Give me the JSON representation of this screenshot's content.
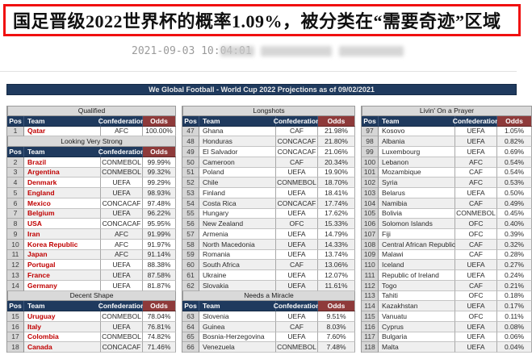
{
  "headline": {
    "text": "国足晋级2022世界杯的概率1.09%，被分类在“需要奇迹”区域"
  },
  "meta": {
    "timestamp": "2021-09-03 10:04:01",
    "redacted_blocks": 3
  },
  "colors": {
    "headline_border": "#f01010",
    "header_navy": "#1f3a5e",
    "odds_header_maroon": "#8e3a3a",
    "section_header_gray": "#d9d9d9",
    "left_group_team_red": "#c00000",
    "row_stripe": "#efefef"
  },
  "table": {
    "title": "We Global Football - World Cup 2022 Projections as of 09/02/2021",
    "headers": {
      "pos": "Pos",
      "team": "Team",
      "confederation": "Confederation",
      "odds": "Odds"
    },
    "groups": [
      {
        "sections": [
          {
            "title": "Qualified",
            "rows": [
              [
                "1",
                "Qatar",
                "AFC",
                "100.00%"
              ]
            ]
          },
          {
            "title": "Looking Very Strong",
            "rows": [
              [
                "2",
                "Brazil",
                "CONMEBOL",
                "99.99%"
              ],
              [
                "3",
                "Argentina",
                "CONMEBOL",
                "99.32%"
              ],
              [
                "4",
                "Denmark",
                "UEFA",
                "99.29%"
              ],
              [
                "5",
                "England",
                "UEFA",
                "98.93%"
              ],
              [
                "6",
                "Mexico",
                "CONCACAF",
                "97.48%"
              ],
              [
                "7",
                "Belgium",
                "UEFA",
                "96.22%"
              ],
              [
                "8",
                "USA",
                "CONCACAF",
                "95.95%"
              ],
              [
                "9",
                "Iran",
                "AFC",
                "91.99%"
              ],
              [
                "10",
                "Korea Republic",
                "AFC",
                "91.97%"
              ],
              [
                "11",
                "Japan",
                "AFC",
                "91.14%"
              ],
              [
                "12",
                "Portugal",
                "UEFA",
                "88.38%"
              ],
              [
                "13",
                "France",
                "UEFA",
                "87.58%"
              ],
              [
                "14",
                "Germany",
                "UEFA",
                "81.87%"
              ]
            ]
          },
          {
            "title": "Decent Shape",
            "rows": [
              [
                "15",
                "Uruguay",
                "CONMEBOL",
                "78.04%"
              ],
              [
                "16",
                "Italy",
                "UEFA",
                "76.81%"
              ],
              [
                "17",
                "Colombia",
                "CONMEBOL",
                "74.82%"
              ],
              [
                "18",
                "Canada",
                "CONCACAF",
                "71.46%"
              ]
            ]
          }
        ]
      },
      {
        "sections": [
          {
            "title": "Longshots",
            "rows": [
              [
                "47",
                "Ghana",
                "CAF",
                "21.98%"
              ],
              [
                "48",
                "Honduras",
                "CONCACAF",
                "21.80%"
              ],
              [
                "49",
                "El Salvador",
                "CONCACAF",
                "21.06%"
              ],
              [
                "50",
                "Cameroon",
                "CAF",
                "20.34%"
              ],
              [
                "51",
                "Poland",
                "UEFA",
                "19.90%"
              ],
              [
                "52",
                "Chile",
                "CONMEBOL",
                "18.70%"
              ],
              [
                "53",
                "Finland",
                "UEFA",
                "18.41%"
              ],
              [
                "54",
                "Costa Rica",
                "CONCACAF",
                "17.74%"
              ],
              [
                "55",
                "Hungary",
                "UEFA",
                "17.62%"
              ],
              [
                "56",
                "New Zealand",
                "OFC",
                "15.33%"
              ],
              [
                "57",
                "Armenia",
                "UEFA",
                "14.79%"
              ],
              [
                "58",
                "North Macedonia",
                "UEFA",
                "14.33%"
              ],
              [
                "59",
                "Romania",
                "UEFA",
                "13.74%"
              ],
              [
                "60",
                "South Africa",
                "CAF",
                "13.06%"
              ],
              [
                "61",
                "Ukraine",
                "UEFA",
                "12.07%"
              ],
              [
                "62",
                "Slovakia",
                "UEFA",
                "11.61%"
              ]
            ]
          },
          {
            "title": "Needs a Miracle",
            "rows": [
              [
                "63",
                "Slovenia",
                "UEFA",
                "9.51%"
              ],
              [
                "64",
                "Guinea",
                "CAF",
                "8.03%"
              ],
              [
                "65",
                "Bosnia-Herzegovina",
                "UEFA",
                "7.60%"
              ],
              [
                "66",
                "Venezuela",
                "CONMEBOL",
                "7.48%"
              ]
            ]
          }
        ]
      },
      {
        "sections": [
          {
            "title": "Livin' On a Prayer",
            "rows": [
              [
                "97",
                "Kosovo",
                "UEFA",
                "1.05%"
              ],
              [
                "98",
                "Albania",
                "UEFA",
                "0.82%"
              ],
              [
                "99",
                "Luxembourg",
                "UEFA",
                "0.69%"
              ],
              [
                "100",
                "Lebanon",
                "AFC",
                "0.54%"
              ],
              [
                "101",
                "Mozambique",
                "CAF",
                "0.54%"
              ],
              [
                "102",
                "Syria",
                "AFC",
                "0.53%"
              ],
              [
                "103",
                "Belarus",
                "UEFA",
                "0.50%"
              ],
              [
                "104",
                "Namibia",
                "CAF",
                "0.49%"
              ],
              [
                "105",
                "Bolivia",
                "CONMEBOL",
                "0.45%"
              ],
              [
                "106",
                "Solomon Islands",
                "OFC",
                "0.40%"
              ],
              [
                "107",
                "Fiji",
                "OFC",
                "0.39%"
              ],
              [
                "108",
                "Central African Republic",
                "CAF",
                "0.32%"
              ],
              [
                "109",
                "Malawi",
                "CAF",
                "0.28%"
              ],
              [
                "110",
                "Iceland",
                "UEFA",
                "0.27%"
              ],
              [
                "111",
                "Republic of Ireland",
                "UEFA",
                "0.24%"
              ],
              [
                "112",
                "Togo",
                "CAF",
                "0.21%"
              ],
              [
                "113",
                "Tahiti",
                "OFC",
                "0.18%"
              ],
              [
                "114",
                "Kazakhstan",
                "UEFA",
                "0.17%"
              ],
              [
                "115",
                "Vanuatu",
                "OFC",
                "0.11%"
              ],
              [
                "116",
                "Cyprus",
                "UEFA",
                "0.08%"
              ],
              [
                "117",
                "Bulgaria",
                "UEFA",
                "0.06%"
              ],
              [
                "118",
                "Malta",
                "UEFA",
                "0.04%"
              ]
            ]
          }
        ]
      }
    ]
  }
}
